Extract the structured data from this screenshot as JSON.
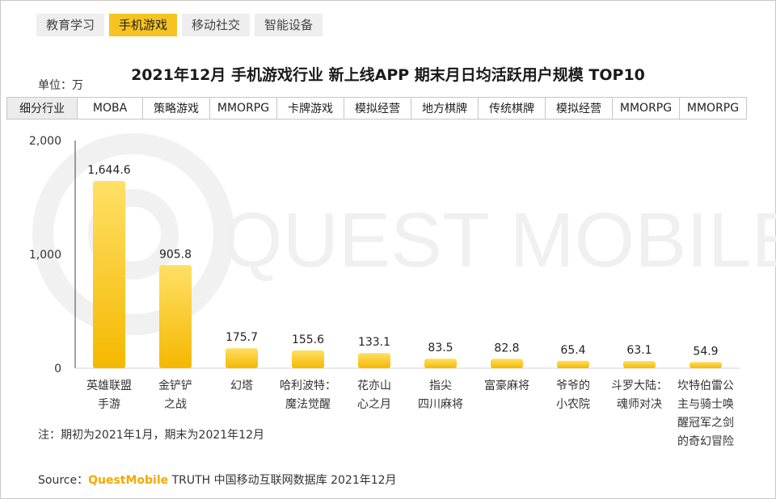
{
  "tabs": [
    {
      "label": "教育学习",
      "active": false
    },
    {
      "label": "手机游戏",
      "active": true
    },
    {
      "label": "移动社交",
      "active": false
    },
    {
      "label": "智能设备",
      "active": false
    }
  ],
  "watermark": "QUEST MOBILE",
  "unit_label": "单位：万",
  "category_header": "细分行业",
  "colors": {
    "bar_top": "#ffe066",
    "bar_bottom": "#f5b800",
    "accent": "#f7c320"
  },
  "chart_data": {
    "type": "bar",
    "title": "2021年12月 手机游戏行业 新上线APP 期末月日均活跃用户规模 TOP10",
    "ylabel": "单位：万",
    "ylim": [
      0,
      2000
    ],
    "yticks": [
      0,
      1000,
      2000
    ],
    "ytick_labels": [
      "0",
      "1,000",
      "2,000"
    ],
    "categories": [
      "英雄联盟\n手游",
      "金铲铲\n之战",
      "幻塔",
      "哈利波特：\n魔法觉醒",
      "花亦山\n心之月",
      "指尖\n四川麻将",
      "富豪麻将",
      "爷爷的\n小农院",
      "斗罗大陆：\n魂师对决",
      "坎特伯雷公\n主与骑士唤\n醒冠军之剑\n的奇幻冒险"
    ],
    "segments": [
      "MOBA",
      "策略游戏",
      "MMORPG",
      "卡牌游戏",
      "模拟经营",
      "地方棋牌",
      "传统棋牌",
      "模拟经营",
      "MMORPG",
      "MMORPG"
    ],
    "values": [
      1644.6,
      905.8,
      175.7,
      155.6,
      133.1,
      83.5,
      82.8,
      65.4,
      63.1,
      54.9
    ],
    "value_labels": [
      "1,644.6",
      "905.8",
      "175.7",
      "155.6",
      "133.1",
      "83.5",
      "82.8",
      "65.4",
      "63.1",
      "54.9"
    ]
  },
  "note": "注：期初为2021年1月，期末为2021年12月",
  "source": {
    "prefix": "Source：",
    "brand": "QuestMobile",
    "rest": " TRUTH 中国移动互联网数据库 2021年12月"
  }
}
